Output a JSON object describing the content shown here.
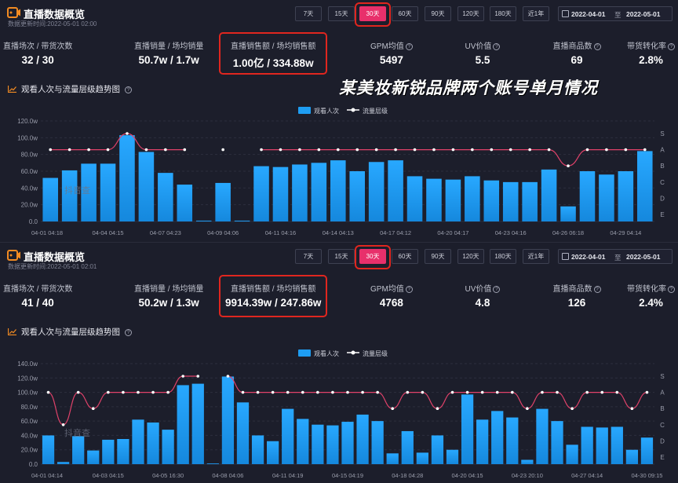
{
  "caption": "某美妆新锐品牌两个账号单月情况",
  "colors": {
    "bar": "#1e9df2",
    "line": "#e0426a",
    "accent": "#e8306b",
    "highlight": "#e0261f",
    "background": "#1c1e2b"
  },
  "icons": {
    "logo": "live-camera-icon",
    "trend": "trend-chart-icon",
    "help": "question-circle-icon",
    "calendar": "calendar-icon"
  },
  "panels": [
    {
      "title": "直播数据概览",
      "updated": "数据更新时间:2022-05-01 02:00",
      "range_buttons": [
        "7天",
        "15天",
        "30天",
        "60天",
        "90天",
        "120天",
        "180天",
        "近1年"
      ],
      "active_range": "30天",
      "date_from": "2022-04-01",
      "date_sep": "至",
      "date_to": "2022-05-01",
      "metrics": [
        {
          "label": "直播场次 / 带货次数",
          "value": "32 / 30"
        },
        {
          "label": "直播销量 / 场均销量",
          "value": "50.7w / 1.7w"
        },
        {
          "label": "直播销售额 / 场均销售额",
          "value": "1.00亿 / 334.88w",
          "highlighted": true
        },
        {
          "label": "GPM均值",
          "value": "5497",
          "help": true
        },
        {
          "label": "UV价值",
          "value": "5.5",
          "help": true
        },
        {
          "label": "直播商品数",
          "value": "69",
          "help": true
        },
        {
          "label": "带货转化率",
          "value": "2.8%",
          "help": true
        }
      ],
      "trend_title": "观看人次与流量层级趋势图",
      "chart_data": {
        "type": "bar",
        "series": [
          {
            "name": "观看人次",
            "kind": "bar",
            "values": [
              52,
              61,
              69,
              69,
              103,
              83,
              58,
              44,
              1,
              46,
              1,
              66,
              65,
              68,
              70,
              73,
              60,
              71,
              73,
              54,
              51,
              50,
              54,
              49,
              47,
              47,
              62,
              18,
              60,
              56,
              60,
              84
            ]
          },
          {
            "name": "流量层级",
            "kind": "line",
            "levels": [
              "A",
              "A",
              "A",
              "A",
              "S",
              "A",
              "A",
              "A",
              null,
              "A",
              null,
              "A",
              "A",
              "A",
              "A",
              "A",
              "A",
              "A",
              "A",
              "A",
              "A",
              "A",
              "A",
              "A",
              "A",
              "A",
              "A",
              "B",
              "A",
              "A",
              "A",
              "A"
            ]
          }
        ],
        "y_ticks": [
          "0.0",
          "20.0w",
          "40.0w",
          "60.0w",
          "80.0w",
          "100.0w",
          "120.0w"
        ],
        "ylim": [
          0,
          120
        ],
        "y2_ticks": [
          "S",
          "A",
          "B",
          "C",
          "D",
          "E"
        ],
        "x_ticks": [
          {
            "index": 0,
            "label": "04-01 04:18"
          },
          {
            "index": 3,
            "label": "04-04 04:15"
          },
          {
            "index": 6,
            "label": "04-07 04:23"
          },
          {
            "index": 9,
            "label": "04-09 04:06"
          },
          {
            "index": 12,
            "label": "04-11 04:16"
          },
          {
            "index": 15,
            "label": "04-14 04:13"
          },
          {
            "index": 18,
            "label": "04-17 04:12"
          },
          {
            "index": 21,
            "label": "04-20 04:17"
          },
          {
            "index": 24,
            "label": "04-23 04:16"
          },
          {
            "index": 27,
            "label": "04-26 06:18"
          },
          {
            "index": 30,
            "label": "04-29 04:14"
          }
        ],
        "legend": [
          "观看人次",
          "流量层级"
        ],
        "watermark": "抖音查"
      }
    },
    {
      "title": "直播数据概览",
      "updated": "数据更新时间:2022-05-01 02:01",
      "range_buttons": [
        "7天",
        "15天",
        "30天",
        "60天",
        "90天",
        "120天",
        "180天",
        "近1年"
      ],
      "active_range": "30天",
      "date_from": "2022-04-01",
      "date_sep": "至",
      "date_to": "2022-05-01",
      "metrics": [
        {
          "label": "直播场次 / 带货次数",
          "value": "41 / 40"
        },
        {
          "label": "直播销量 / 场均销量",
          "value": "50.2w / 1.3w"
        },
        {
          "label": "直播销售额 / 场均销售额",
          "value": "9914.39w / 247.86w",
          "highlighted": true
        },
        {
          "label": "GPM均值",
          "value": "4768",
          "help": true
        },
        {
          "label": "UV价值",
          "value": "4.8",
          "help": true
        },
        {
          "label": "直播商品数",
          "value": "126",
          "help": true
        },
        {
          "label": "带货转化率",
          "value": "2.4%",
          "help": true
        }
      ],
      "trend_title": "观看人次与流量层级趋势图",
      "chart_data": {
        "type": "bar",
        "series": [
          {
            "name": "观看人次",
            "kind": "bar",
            "values": [
              40,
              3,
              39,
              19,
              34,
              35,
              62,
              58,
              48,
              110,
              112,
              1,
              122,
              86,
              40,
              32,
              77,
              63,
              55,
              54,
              59,
              69,
              60,
              15,
              46,
              16,
              40,
              20,
              97,
              62,
              74,
              65,
              6,
              77,
              60,
              27,
              52,
              51,
              52,
              20,
              37
            ]
          },
          {
            "name": "流量层级",
            "kind": "line",
            "levels": [
              "A",
              "C",
              "A",
              "B",
              "A",
              "A",
              "A",
              "A",
              "A",
              "S",
              "S",
              null,
              "S",
              "A",
              "A",
              "A",
              "A",
              "A",
              "A",
              "A",
              "A",
              "A",
              "A",
              "B",
              "A",
              "A",
              "B",
              "A",
              "A",
              "A",
              "A",
              "A",
              "B",
              "A",
              "A",
              "B",
              "A",
              "A",
              "A",
              "B",
              "A"
            ]
          }
        ],
        "y_ticks": [
          "0.0",
          "20.0w",
          "40.0w",
          "60.0w",
          "80.0w",
          "100.0w",
          "120.0w",
          "140.0w"
        ],
        "ylim": [
          0,
          140
        ],
        "y2_ticks": [
          "S",
          "A",
          "B",
          "C",
          "D",
          "E"
        ],
        "x_ticks": [
          {
            "index": 0,
            "label": "04-01 04:14"
          },
          {
            "index": 4,
            "label": "04-03 04:15"
          },
          {
            "index": 8,
            "label": "04-05 16:30"
          },
          {
            "index": 12,
            "label": "04-08 04:06"
          },
          {
            "index": 16,
            "label": "04-11 04:19"
          },
          {
            "index": 20,
            "label": "04-15 04:19"
          },
          {
            "index": 24,
            "label": "04-18 04:28"
          },
          {
            "index": 28,
            "label": "04-20 04:15"
          },
          {
            "index": 32,
            "label": "04-23 20:10"
          },
          {
            "index": 36,
            "label": "04-27 04:14"
          },
          {
            "index": 40,
            "label": "04-30 09:15"
          }
        ],
        "legend": [
          "观看人次",
          "流量层级"
        ],
        "watermark": "抖音查"
      }
    }
  ]
}
